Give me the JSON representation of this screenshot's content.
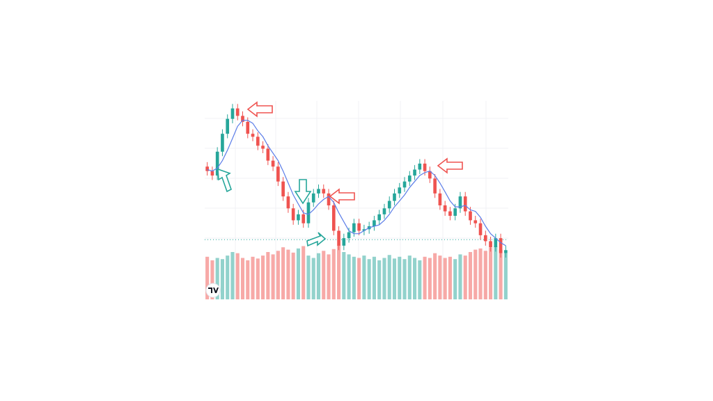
{
  "chart_data": {
    "type": "candlestick",
    "open": [
      58,
      55,
      52,
      68,
      80,
      90,
      97,
      92,
      88,
      80,
      78,
      72,
      70,
      62,
      58,
      48,
      38,
      30,
      22,
      26,
      20,
      34,
      40,
      43,
      40,
      32,
      15,
      5,
      10,
      14,
      20,
      15,
      16,
      18,
      22,
      26,
      30,
      35,
      40,
      44,
      48,
      52,
      56,
      60,
      55,
      50,
      40,
      32,
      28,
      25,
      30,
      38,
      28,
      22,
      20,
      12,
      8,
      4,
      10,
      0
    ],
    "high": [
      61,
      58,
      71,
      83,
      93,
      100,
      100,
      95,
      91,
      83,
      81,
      75,
      73,
      65,
      61,
      51,
      41,
      33,
      29,
      29,
      37,
      43,
      46,
      46,
      43,
      35,
      18,
      13,
      17,
      23,
      23,
      19,
      21,
      25,
      29,
      33,
      38,
      43,
      47,
      51,
      55,
      59,
      63,
      63,
      58,
      53,
      43,
      35,
      31,
      33,
      41,
      41,
      31,
      25,
      23,
      15,
      11,
      13,
      13,
      5
    ],
    "low": [
      52,
      49,
      49,
      65,
      77,
      87,
      89,
      85,
      77,
      75,
      69,
      67,
      59,
      55,
      45,
      35,
      27,
      19,
      19,
      17,
      17,
      31,
      37,
      37,
      29,
      12,
      2,
      2,
      7,
      11,
      12,
      12,
      13,
      15,
      19,
      23,
      27,
      32,
      37,
      41,
      45,
      49,
      53,
      52,
      47,
      37,
      29,
      25,
      22,
      22,
      27,
      25,
      19,
      17,
      9,
      5,
      1,
      1,
      -3,
      -3
    ],
    "close": [
      55,
      52,
      68,
      80,
      90,
      97,
      92,
      88,
      80,
      78,
      72,
      70,
      62,
      58,
      48,
      38,
      30,
      22,
      26,
      20,
      34,
      40,
      43,
      40,
      32,
      15,
      5,
      10,
      14,
      20,
      15,
      16,
      18,
      22,
      26,
      30,
      35,
      40,
      44,
      48,
      52,
      56,
      60,
      55,
      50,
      40,
      32,
      28,
      25,
      30,
      38,
      28,
      22,
      20,
      12,
      8,
      4,
      10,
      0,
      2
    ],
    "volume": [
      72,
      66,
      70,
      68,
      74,
      80,
      78,
      70,
      66,
      72,
      69,
      74,
      80,
      76,
      82,
      88,
      84,
      79,
      86,
      90,
      74,
      70,
      78,
      82,
      76,
      85,
      92,
      80,
      76,
      72,
      70,
      74,
      68,
      72,
      66,
      70,
      75,
      69,
      72,
      68,
      74,
      70,
      66,
      72,
      70,
      78,
      74,
      70,
      72,
      68,
      76,
      74,
      80,
      84,
      86,
      82,
      88,
      90,
      84,
      78
    ],
    "ma": [
      56,
      55,
      57,
      62,
      69,
      77,
      85,
      89,
      89,
      87,
      82,
      78,
      72,
      67,
      62,
      55,
      47,
      39,
      33,
      27,
      26,
      29,
      33,
      36,
      38,
      34,
      27,
      21,
      15,
      13,
      13,
      15,
      17,
      18,
      19,
      22,
      26,
      31,
      35,
      39,
      44,
      48,
      52,
      54,
      55,
      52,
      47,
      41,
      35,
      31,
      31,
      32,
      29,
      28,
      24,
      18,
      13,
      10,
      7,
      5
    ],
    "price_line": 9,
    "ylim": [
      -10,
      102
    ],
    "vlim": [
      0,
      100
    ],
    "up_color": "#26a69a",
    "down_color": "#ef5350",
    "ma_color": "#5b7de8"
  }
}
